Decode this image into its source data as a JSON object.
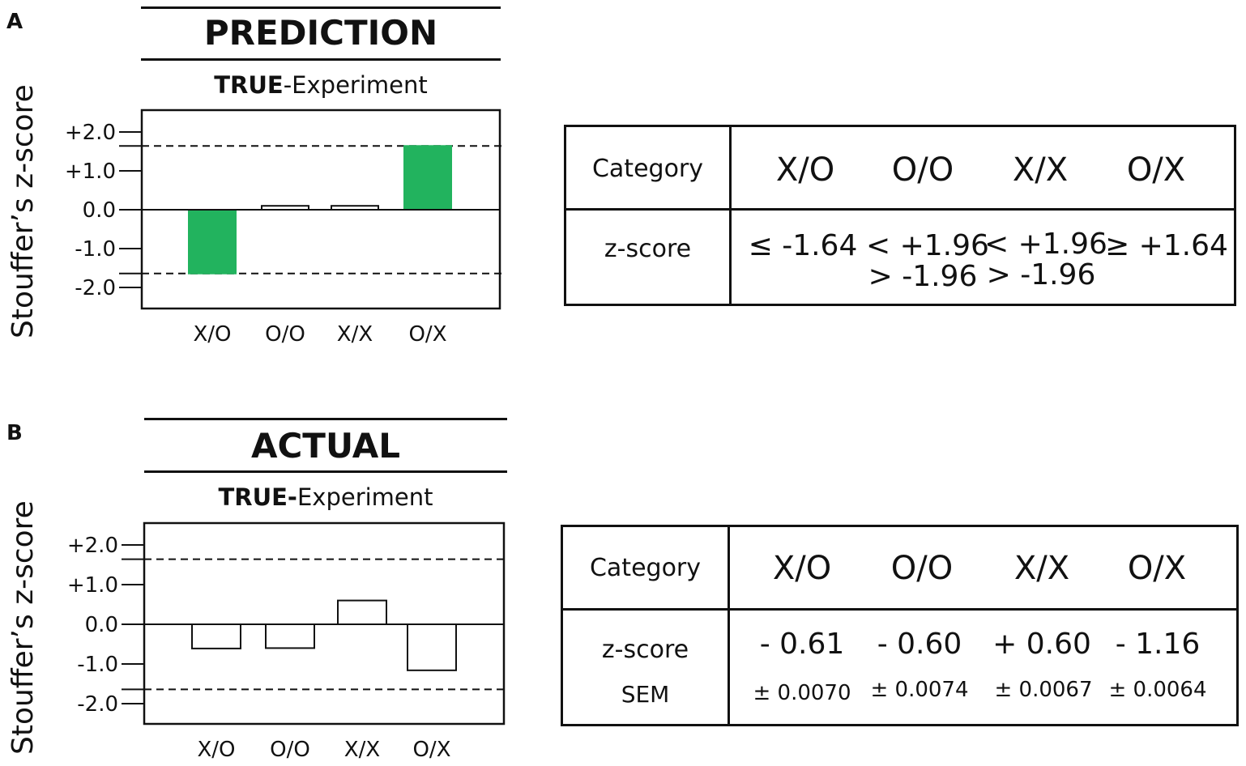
{
  "colors": {
    "highlight": "#22b35e",
    "ink": "#111111",
    "background": "#ffffff"
  },
  "panel_a": {
    "letter": "A",
    "title": "PREDICTION",
    "subtitle_bold": "TRUE",
    "subtitle_rest": "-Experiment",
    "table": {
      "header_label": "Category",
      "categories": [
        "X/O",
        "O/O",
        "X/X",
        "O/X"
      ],
      "row_label": "z-score",
      "values": [
        {
          "line1": "≤ -1.64",
          "line2": ""
        },
        {
          "line1": "< +1.96",
          "line2": "> -1.96"
        },
        {
          "line1": "< +1.96",
          "line2": "> -1.96"
        },
        {
          "line1": "≥ +1.64",
          "line2": ""
        }
      ]
    }
  },
  "panel_b": {
    "letter": "B",
    "title": "ACTUAL",
    "subtitle_bold": "TRUE-",
    "subtitle_rest": "Experiment",
    "table": {
      "header_label": "Category",
      "categories": [
        "X/O",
        "O/O",
        "X/X",
        "O/X"
      ],
      "row_label": "z-score",
      "row_label2": "SEM",
      "values": [
        "- 0.61",
        "- 0.60",
        "+ 0.60",
        "- 1.16"
      ],
      "sems": [
        "± 0.0070",
        "± 0.0074",
        "± 0.0067",
        "± 0.0064"
      ]
    }
  },
  "chart_data": [
    {
      "type": "bar",
      "title": "PREDICTION",
      "subtitle": "TRUE-Experiment",
      "ylabel": "Stouffer’s z-score",
      "categories": [
        "X/O",
        "O/O",
        "X/X",
        "O/X"
      ],
      "values": [
        -1.64,
        0.1,
        0.1,
        1.64
      ],
      "filled": [
        true,
        false,
        false,
        true
      ],
      "ylim": [
        -2.5,
        2.5
      ],
      "yticks": [
        "+2.0",
        "+1.0",
        "0.0",
        "-1.0",
        "-2.0"
      ],
      "ytick_values": [
        2,
        1,
        0,
        -1,
        -2
      ],
      "reference_lines": [
        1.64,
        -1.64
      ],
      "zero_line": true,
      "grid": false
    },
    {
      "type": "bar",
      "title": "ACTUAL",
      "subtitle": "TRUE-Experiment",
      "ylabel": "Stouffer’s z-score",
      "categories": [
        "X/O",
        "O/O",
        "X/X",
        "O/X"
      ],
      "values": [
        -0.61,
        -0.6,
        0.6,
        -1.16
      ],
      "filled": [
        false,
        false,
        false,
        false
      ],
      "ylim": [
        -2.5,
        2.5
      ],
      "yticks": [
        "+2.0",
        "+1.0",
        "0.0",
        "-1.0",
        "-2.0"
      ],
      "ytick_values": [
        2,
        1,
        0,
        -1,
        -2
      ],
      "reference_lines": [
        1.64,
        -1.64
      ],
      "zero_line": true,
      "grid": false
    }
  ]
}
